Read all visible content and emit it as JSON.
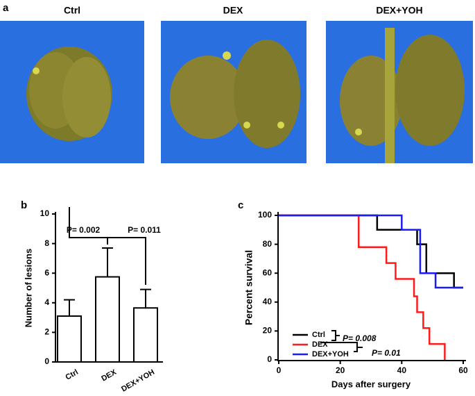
{
  "panel_labels": [
    "a",
    "b",
    "c"
  ],
  "photo_labels": [
    "Ctrl",
    "DEX",
    "DEX+YOH"
  ],
  "chart_data": [
    {
      "type": "bar",
      "ylabel": "Number of lesions",
      "categories": [
        "Ctrl",
        "DEX",
        "DEX+YOH"
      ],
      "values": [
        3.1,
        5.75,
        3.65
      ],
      "errors": [
        1.1,
        1.95,
        1.25
      ],
      "ylim": [
        0,
        10
      ],
      "yticks": [
        0,
        2,
        4,
        6,
        8,
        10
      ],
      "annotations": [
        "P= 0.002",
        "P= 0.011"
      ]
    },
    {
      "type": "line",
      "xlabel": "Days after surgery",
      "ylabel": "Percent survival",
      "xlim": [
        0,
        60
      ],
      "xticks": [
        0,
        20,
        40,
        60
      ],
      "ylim": [
        0,
        100
      ],
      "yticks": [
        0,
        20,
        40,
        60,
        80,
        100
      ],
      "legend": "lower left",
      "series": [
        {
          "name": "Ctrl",
          "color": "#000000",
          "x": [
            0,
            32,
            32,
            45,
            45,
            48,
            48,
            57,
            57,
            60
          ],
          "values": [
            100,
            100,
            90,
            90,
            80,
            80,
            60,
            60,
            50,
            50
          ]
        },
        {
          "name": "DEX",
          "color": "#ff1a1a",
          "x": [
            0,
            26,
            26,
            35,
            35,
            38,
            38,
            44,
            44,
            45,
            45,
            47,
            47,
            49,
            49,
            54,
            54
          ],
          "values": [
            100,
            100,
            78,
            78,
            67,
            67,
            56,
            56,
            44,
            44,
            33,
            33,
            22,
            22,
            11,
            11,
            0
          ]
        },
        {
          "name": "DEX+YOH",
          "color": "#1a1aff",
          "x": [
            0,
            40,
            40,
            46,
            46,
            51,
            51,
            60
          ],
          "values": [
            100,
            100,
            90,
            90,
            60,
            60,
            50,
            50
          ]
        }
      ],
      "annotations": [
        "P= 0.008",
        "P= 0.01"
      ]
    }
  ]
}
